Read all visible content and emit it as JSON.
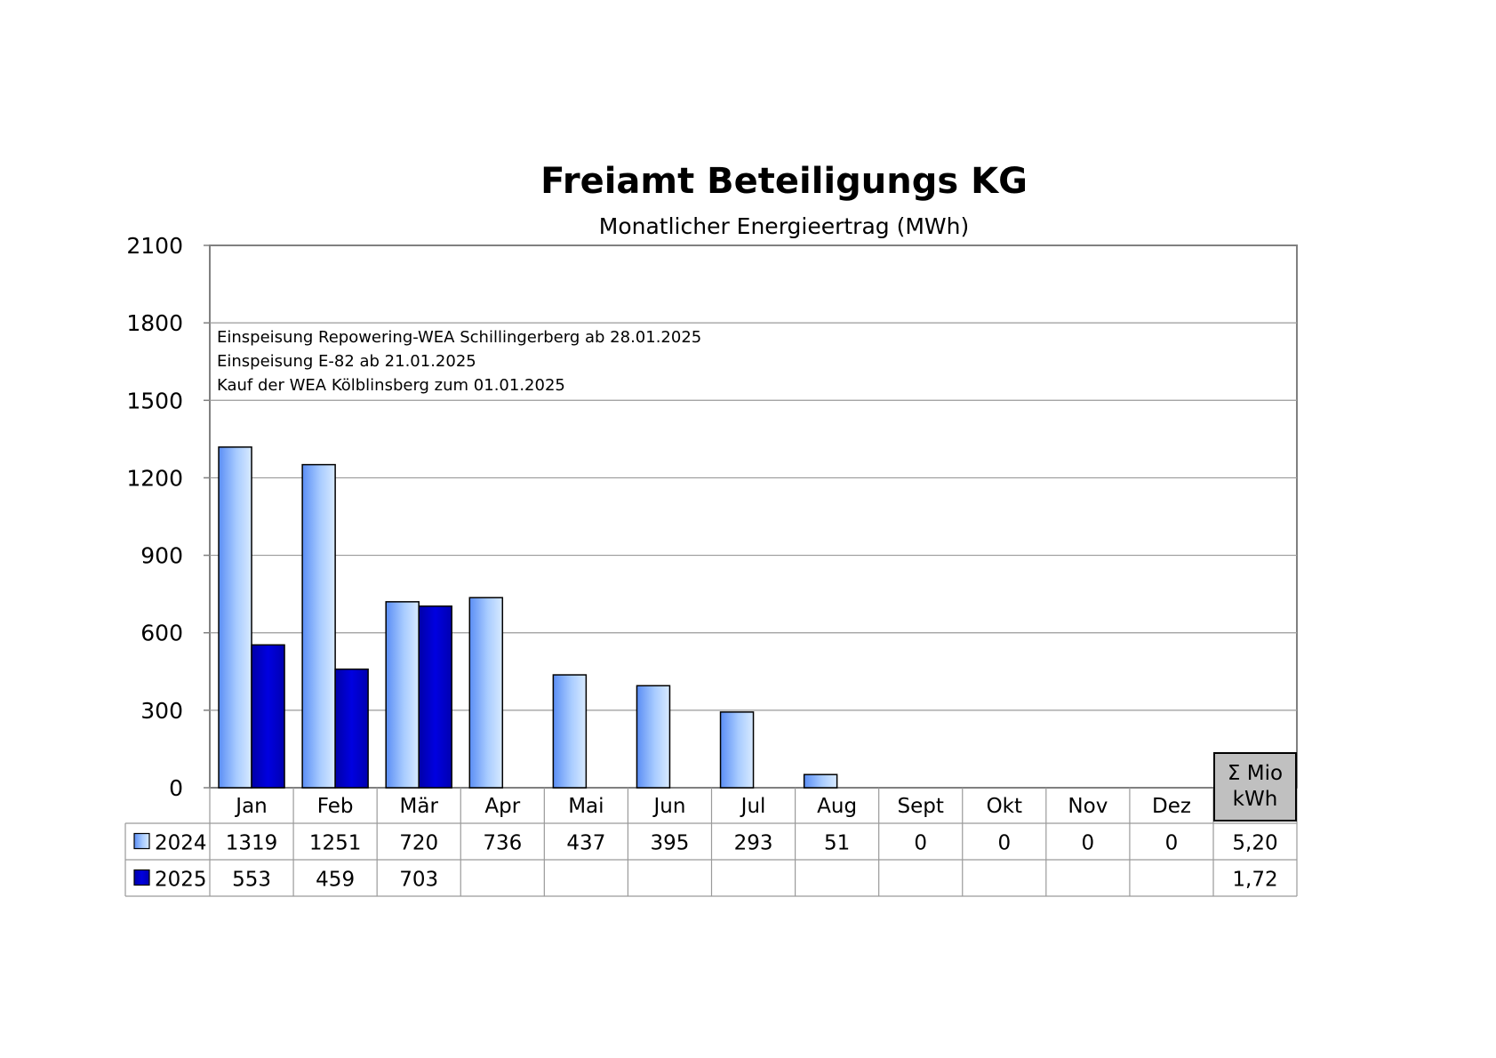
{
  "chart_data": {
    "type": "bar",
    "title": "Freiamt Beteiligungs KG",
    "subtitle": "Monatlicher Energieertrag (MWh)",
    "categories": [
      "Jan",
      "Feb",
      "Mär",
      "Apr",
      "Mai",
      "Jun",
      "Jul",
      "Aug",
      "Sept",
      "Okt",
      "Nov",
      "Dez"
    ],
    "series": [
      {
        "name": "2024",
        "values": [
          1319,
          1251,
          720,
          736,
          437,
          395,
          293,
          51,
          0,
          0,
          0,
          0
        ],
        "labels": [
          "1319",
          "1251",
          "720",
          "736",
          "437",
          "395",
          "293",
          "51",
          "0",
          "0",
          "0",
          "0"
        ],
        "color": "#66a3ff",
        "total": "5,20"
      },
      {
        "name": "2025",
        "values": [
          553,
          459,
          703,
          null,
          null,
          null,
          null,
          null,
          null,
          null,
          null,
          null
        ],
        "labels": [
          "553",
          "459",
          "703",
          "",
          "",
          "",
          "",
          "",
          "",
          "",
          "",
          ""
        ],
        "color": "#0000cc",
        "total": "1,72"
      }
    ],
    "yticks": [
      "0",
      "300",
      "600",
      "900",
      "1200",
      "1500",
      "1800",
      "2100"
    ],
    "ylim": [
      0,
      2100
    ],
    "total_header": [
      "Σ Mio",
      "kWh"
    ],
    "annotations": [
      "Einspeisung Repowering-WEA Schillingerberg ab 28.01.2025",
      "Einspeisung E-82 ab 21.01.2025",
      "Kauf der WEA Kölblinsberg zum 01.01.2025"
    ],
    "grid": true,
    "legend": "table"
  }
}
